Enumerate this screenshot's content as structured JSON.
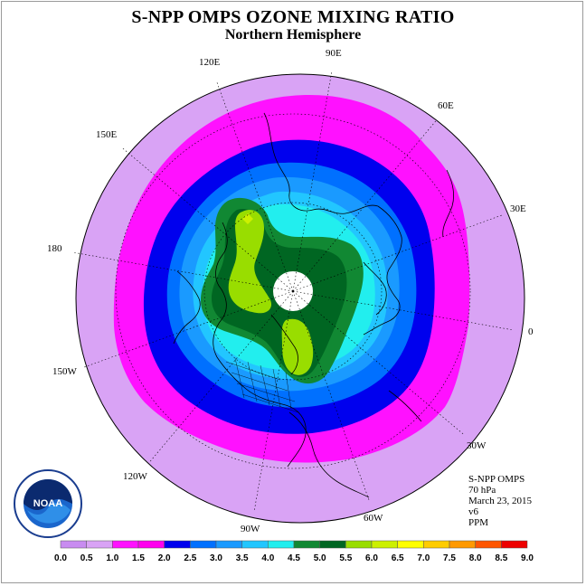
{
  "title": "S-NPP OMPS OZONE MIXING RATIO",
  "subtitle": "Northern Hemisphere",
  "longitude_labels": {
    "lon_90e": "90E",
    "lon_60e": "60E",
    "lon_30e": "30E",
    "lon_0": "0",
    "lon_30w": "30W",
    "lon_60w": "60W",
    "lon_90w": "90W",
    "lon_120w": "120W",
    "lon_150w": "150W",
    "lon_180": "180",
    "lon_150e": "150E",
    "lon_120e": "120E"
  },
  "info": {
    "instrument": "S-NPP OMPS",
    "level": "70 hPa",
    "date": "March 23, 2015",
    "version": "v6",
    "units": "PPM"
  },
  "logo": {
    "icon": "noaa-logo",
    "text": "NOAA"
  },
  "colorbar": {
    "ticks": [
      "0.0",
      "0.5",
      "1.0",
      "1.5",
      "2.0",
      "2.5",
      "3.0",
      "3.5",
      "4.0",
      "4.5",
      "5.0",
      "5.5",
      "6.0",
      "6.5",
      "7.0",
      "7.5",
      "8.0",
      "8.5",
      "9.0"
    ],
    "colors": [
      "#c88cf0",
      "#d9a3f5",
      "#ff11ff",
      "#ff00ee",
      "#0000ee",
      "#0070ff",
      "#1a9aff",
      "#22c6ff",
      "#22eeee",
      "#118833",
      "#006622",
      "#99dd00",
      "#ccf000",
      "#ffff00",
      "#ffcc00",
      "#ff9900",
      "#ff5500",
      "#ee0000",
      "#8b5a2b"
    ]
  },
  "contour_colors": {
    "outer": "#d9a3f5",
    "band_1_0": "#ff11ff",
    "band_1_5": "#0000ee",
    "band_2_0": "#0070ff",
    "band_2_5": "#1a9aff",
    "band_3_0": "#22c6ff",
    "band_3_5": "#22eeee",
    "band_4_0": "#118833",
    "band_4_5": "#006622",
    "band_5_5": "#99dd00",
    "band_6_0": "#ccf000",
    "polar_cap": "#ffffff"
  }
}
